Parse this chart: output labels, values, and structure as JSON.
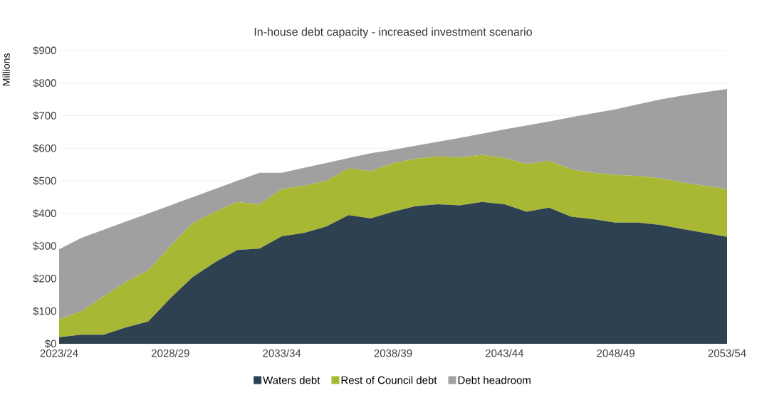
{
  "chart_data": {
    "type": "area",
    "stacked": true,
    "title": "In-house debt capacity - increased investment scenario",
    "ylabel": "Millions",
    "categories": [
      "2023/24",
      null,
      null,
      null,
      null,
      "2028/29",
      null,
      null,
      null,
      null,
      "2033/34",
      null,
      null,
      null,
      null,
      "2038/39",
      null,
      null,
      null,
      null,
      "2043/44",
      null,
      null,
      null,
      null,
      "2048/49",
      null,
      null,
      null,
      null,
      "2053/54"
    ],
    "ylim": [
      0,
      900
    ],
    "yticks": [
      {
        "value": 0,
        "label": "$0"
      },
      {
        "value": 100,
        "label": "$100"
      },
      {
        "value": 200,
        "label": "$200"
      },
      {
        "value": 300,
        "label": "$300"
      },
      {
        "value": 400,
        "label": "$400"
      },
      {
        "value": 500,
        "label": "$500"
      },
      {
        "value": 600,
        "label": "$600"
      },
      {
        "value": 700,
        "label": "$700"
      },
      {
        "value": 800,
        "label": "$800"
      },
      {
        "value": 900,
        "label": "$900"
      }
    ],
    "grid": "y",
    "legend": "bottom",
    "series": [
      {
        "name": "Waters debt",
        "color": "#2e4150",
        "values": [
          20,
          28,
          28,
          50,
          68,
          140,
          205,
          250,
          288,
          292,
          330,
          340,
          360,
          395,
          385,
          405,
          422,
          428,
          425,
          435,
          428,
          405,
          418,
          390,
          382,
          372,
          372,
          365,
          352,
          340,
          328
        ]
      },
      {
        "name": "Rest of Council debt",
        "color": "#a8b834",
        "values": [
          55,
          72,
          117,
          140,
          157,
          160,
          165,
          155,
          147,
          136,
          145,
          145,
          140,
          143,
          145,
          150,
          146,
          147,
          147,
          145,
          142,
          147,
          144,
          145,
          143,
          146,
          143,
          143,
          143,
          145,
          147
        ]
      },
      {
        "name": "Debt headroom",
        "color": "#a0a0a0",
        "values": [
          215,
          225,
          205,
          185,
          175,
          125,
          80,
          70,
          65,
          97,
          50,
          55,
          55,
          32,
          55,
          40,
          40,
          45,
          60,
          65,
          88,
          118,
          120,
          160,
          183,
          202,
          220,
          242,
          267,
          287,
          307
        ]
      }
    ]
  }
}
